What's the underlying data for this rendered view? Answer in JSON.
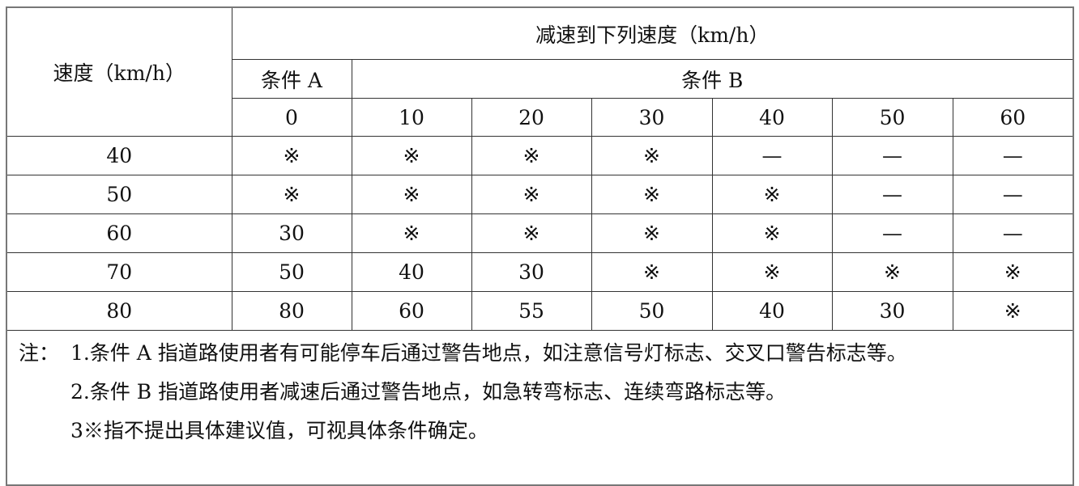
{
  "header": {
    "speed_label": "速度（km/h）",
    "reduce_label": "减速到下列速度（km/h）",
    "condition_a": "条件 A",
    "condition_b": "条件 B",
    "target_speeds": [
      "0",
      "10",
      "20",
      "30",
      "40",
      "50",
      "60"
    ]
  },
  "rows": [
    {
      "speed": "40",
      "values": [
        "※",
        "※",
        "※",
        "※",
        "—",
        "—",
        "—"
      ]
    },
    {
      "speed": "50",
      "values": [
        "※",
        "※",
        "※",
        "※",
        "※",
        "—",
        "—"
      ]
    },
    {
      "speed": "60",
      "values": [
        "30",
        "※",
        "※",
        "※",
        "※",
        "—",
        "—"
      ]
    },
    {
      "speed": "70",
      "values": [
        "50",
        "40",
        "30",
        "※",
        "※",
        "※",
        "※"
      ]
    },
    {
      "speed": "80",
      "values": [
        "80",
        "60",
        "55",
        "50",
        "40",
        "30",
        "※"
      ]
    }
  ],
  "notes": {
    "prefix": "注：",
    "items": [
      "1.条件 A 指道路使用者有可能停车后通过警告地点，如注意信号灯标志、交叉口警告标志等。",
      "2.条件 B 指道路使用者减速后通过警告地点，如急转弯标志、连续弯路标志等。",
      "3※指不提出具体建议值，可视具体条件确定。"
    ]
  }
}
